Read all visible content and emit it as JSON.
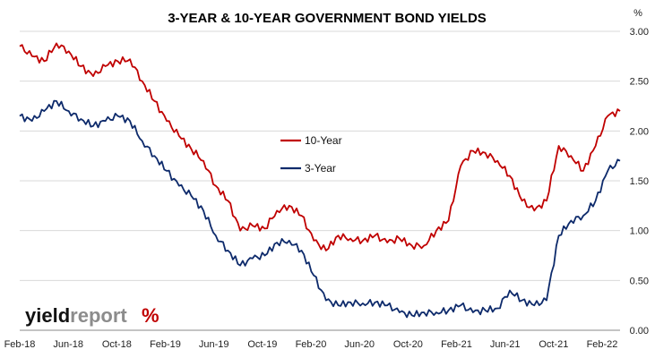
{
  "colors": {
    "ten_year": "#c00000",
    "three_year": "#0d2a6b",
    "grid": "#d9d9d9",
    "brand_dark": "#111111",
    "brand_gray": "#8c8c8c",
    "brand_red": "#c00000",
    "brand_green": "#2e8b2e"
  },
  "logo": {
    "part1": "yield",
    "part2": "report",
    "symbol": "%"
  },
  "chart_data": {
    "type": "line",
    "title": "3-YEAR & 10-YEAR GOVERNMENT BOND YIELDS",
    "ylabel": "%",
    "ylim": [
      0,
      3.0
    ],
    "yticks": [
      "0.00",
      "0.50",
      "1.00",
      "1.50",
      "2.00",
      "2.50",
      "3.00"
    ],
    "xticks": [
      "Feb-18",
      "Jun-18",
      "Oct-18",
      "Feb-19",
      "Jun-19",
      "Oct-19",
      "Feb-20",
      "Jun-20",
      "Oct-20",
      "Feb-21",
      "Jun-21",
      "Oct-21",
      "Feb-22"
    ],
    "grid": "horizontal",
    "legend_position": "center-left",
    "x_dates": [
      "2018-02",
      "2018-03",
      "2018-04",
      "2018-05",
      "2018-06",
      "2018-07",
      "2018-08",
      "2018-09",
      "2018-10",
      "2018-11",
      "2018-12",
      "2019-01",
      "2019-02",
      "2019-03",
      "2019-04",
      "2019-05",
      "2019-06",
      "2019-07",
      "2019-08",
      "2019-09",
      "2019-10",
      "2019-11",
      "2019-12",
      "2020-01",
      "2020-02",
      "2020-03",
      "2020-04",
      "2020-05",
      "2020-06",
      "2020-07",
      "2020-08",
      "2020-09",
      "2020-10",
      "2020-11",
      "2020-12",
      "2021-01",
      "2021-02",
      "2021-03",
      "2021-04",
      "2021-05",
      "2021-06",
      "2021-07",
      "2021-08",
      "2021-09",
      "2021-10",
      "2021-11",
      "2021-12",
      "2022-01",
      "2022-02",
      "2022-03"
    ],
    "series": [
      {
        "name": "10-Year",
        "values": [
          2.85,
          2.75,
          2.7,
          2.88,
          2.8,
          2.65,
          2.55,
          2.65,
          2.7,
          2.72,
          2.5,
          2.3,
          2.1,
          1.95,
          1.82,
          1.7,
          1.45,
          1.3,
          1.0,
          1.05,
          1.02,
          1.2,
          1.25,
          1.15,
          0.9,
          0.8,
          0.95,
          0.92,
          0.9,
          0.95,
          0.88,
          0.92,
          0.85,
          0.85,
          1.0,
          1.1,
          1.65,
          1.8,
          1.78,
          1.7,
          1.55,
          1.3,
          1.2,
          1.3,
          1.85,
          1.75,
          1.6,
          1.85,
          2.15,
          2.2
        ]
      },
      {
        "name": "3-Year",
        "values": [
          2.15,
          2.1,
          2.2,
          2.3,
          2.2,
          2.12,
          2.05,
          2.1,
          2.15,
          2.1,
          1.9,
          1.75,
          1.6,
          1.45,
          1.35,
          1.2,
          0.95,
          0.8,
          0.65,
          0.72,
          0.75,
          0.88,
          0.9,
          0.8,
          0.55,
          0.3,
          0.25,
          0.28,
          0.27,
          0.28,
          0.25,
          0.18,
          0.15,
          0.18,
          0.18,
          0.2,
          0.25,
          0.18,
          0.2,
          0.22,
          0.4,
          0.3,
          0.25,
          0.3,
          0.95,
          1.1,
          1.15,
          1.3,
          1.6,
          1.7
        ]
      }
    ]
  }
}
